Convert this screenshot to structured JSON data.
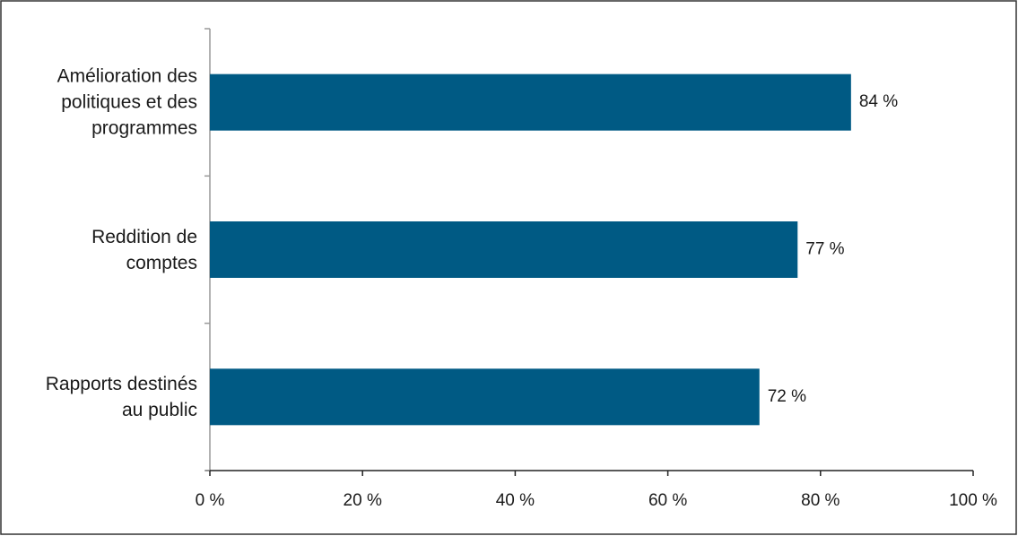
{
  "chart_data": {
    "type": "bar",
    "orientation": "horizontal",
    "categories": [
      "Amélioration des politiques et des programmes",
      "Reddition de comptes",
      "Rapports destinés au public"
    ],
    "values": [
      84,
      77,
      72
    ],
    "value_labels": [
      "84 %",
      "77 %",
      "72 %"
    ],
    "color": "#005a84",
    "xlim": [
      0,
      100
    ],
    "xticks": [
      {
        "value": 0,
        "label": "0 %"
      },
      {
        "value": 20,
        "label": "20 %"
      },
      {
        "value": 40,
        "label": "40 %"
      },
      {
        "value": 60,
        "label": "60 %"
      },
      {
        "value": 80,
        "label": "80 %"
      },
      {
        "value": 100,
        "label": "100 %"
      }
    ],
    "grid": false
  }
}
